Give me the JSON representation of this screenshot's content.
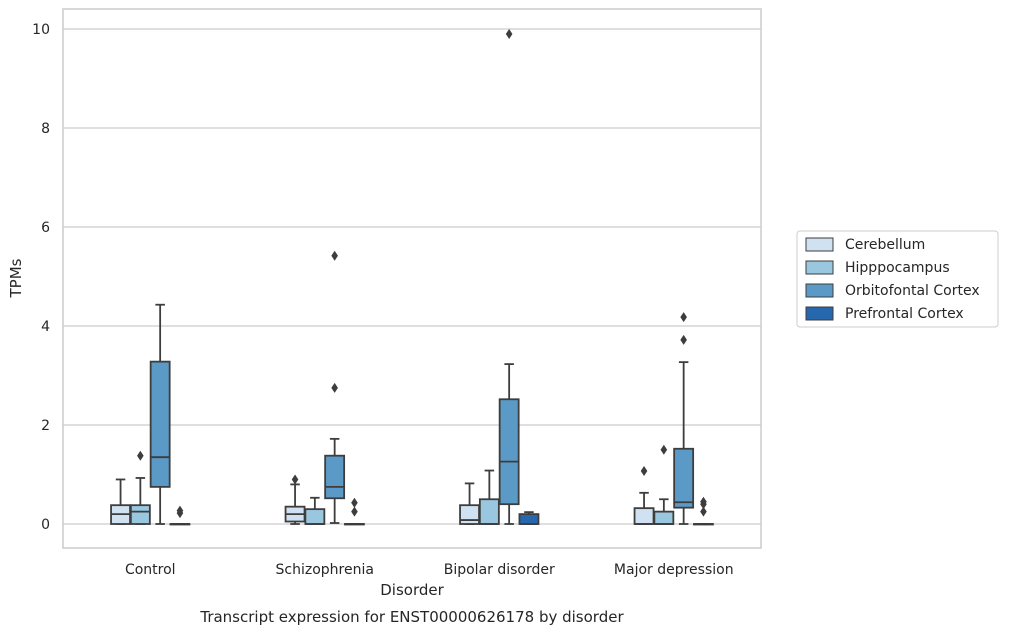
{
  "chart_data": {
    "type": "boxplot",
    "title": "Transcript expression for ENST00000626178 by disorder",
    "xlabel": "Disorder",
    "ylabel": "TPMs",
    "ylim": [
      -0.48,
      10.4
    ],
    "yticks": [
      0,
      2,
      4,
      6,
      8,
      10
    ],
    "grid": "horizontal",
    "legend_position": "right",
    "categories": [
      "Control",
      "Schizophrenia",
      "Bipolar disorder",
      "Major depression"
    ],
    "series": [
      {
        "name": "Cerebellum",
        "color": "#d0e1f1",
        "boxes": [
          {
            "whislo": 0,
            "q1": 0,
            "med": 0.2,
            "q3": 0.38,
            "whishi": 0.9,
            "fliers": []
          },
          {
            "whislo": 0,
            "q1": 0.05,
            "med": 0.2,
            "q3": 0.35,
            "whishi": 0.8,
            "fliers": [
              0.9
            ]
          },
          {
            "whislo": 0,
            "q1": 0,
            "med": 0.08,
            "q3": 0.38,
            "whishi": 0.82,
            "fliers": []
          },
          {
            "whislo": 0,
            "q1": 0,
            "med": 0,
            "q3": 0.32,
            "whishi": 0.63,
            "fliers": [
              1.07
            ]
          }
        ]
      },
      {
        "name": "Hipppocampus",
        "color": "#9ac7e0",
        "boxes": [
          {
            "whislo": 0,
            "q1": 0,
            "med": 0.25,
            "q3": 0.38,
            "whishi": 0.93,
            "fliers": [
              1.38
            ]
          },
          {
            "whislo": 0,
            "q1": 0,
            "med": 0,
            "q3": 0.3,
            "whishi": 0.53,
            "fliers": []
          },
          {
            "whislo": 0,
            "q1": 0,
            "med": 0,
            "q3": 0.5,
            "whishi": 1.08,
            "fliers": []
          },
          {
            "whislo": 0,
            "q1": 0,
            "med": 0,
            "q3": 0.25,
            "whishi": 0.5,
            "fliers": [
              1.5
            ]
          }
        ]
      },
      {
        "name": "Orbitofontal Cortex",
        "color": "#5b9ac7",
        "boxes": [
          {
            "whislo": 0,
            "q1": 0.75,
            "med": 1.35,
            "q3": 3.28,
            "whishi": 4.43,
            "fliers": []
          },
          {
            "whislo": 0.02,
            "q1": 0.52,
            "med": 0.75,
            "q3": 1.38,
            "whishi": 1.72,
            "fliers": [
              2.75,
              5.42
            ]
          },
          {
            "whislo": 0,
            "q1": 0.4,
            "med": 1.26,
            "q3": 2.52,
            "whishi": 3.23,
            "fliers": [
              9.9
            ]
          },
          {
            "whislo": 0,
            "q1": 0.33,
            "med": 0.44,
            "q3": 1.52,
            "whishi": 3.27,
            "fliers": [
              3.72,
              4.18
            ]
          }
        ]
      },
      {
        "name": "Prefrontal Cortex",
        "color": "#2767ad",
        "boxes": [
          {
            "whislo": 0,
            "q1": 0,
            "med": 0,
            "q3": 0,
            "whishi": 0,
            "fliers": [
              0.22,
              0.27
            ]
          },
          {
            "whislo": 0,
            "q1": 0,
            "med": 0,
            "q3": 0,
            "whishi": 0,
            "fliers": [
              0.25,
              0.43
            ]
          },
          {
            "whislo": 0,
            "q1": 0,
            "med": 0,
            "q3": 0.2,
            "whishi": 0.24,
            "fliers": []
          },
          {
            "whislo": 0,
            "q1": 0,
            "med": 0,
            "q3": 0,
            "whishi": 0,
            "fliers": [
              0.25,
              0.4,
              0.45
            ]
          }
        ]
      }
    ]
  }
}
